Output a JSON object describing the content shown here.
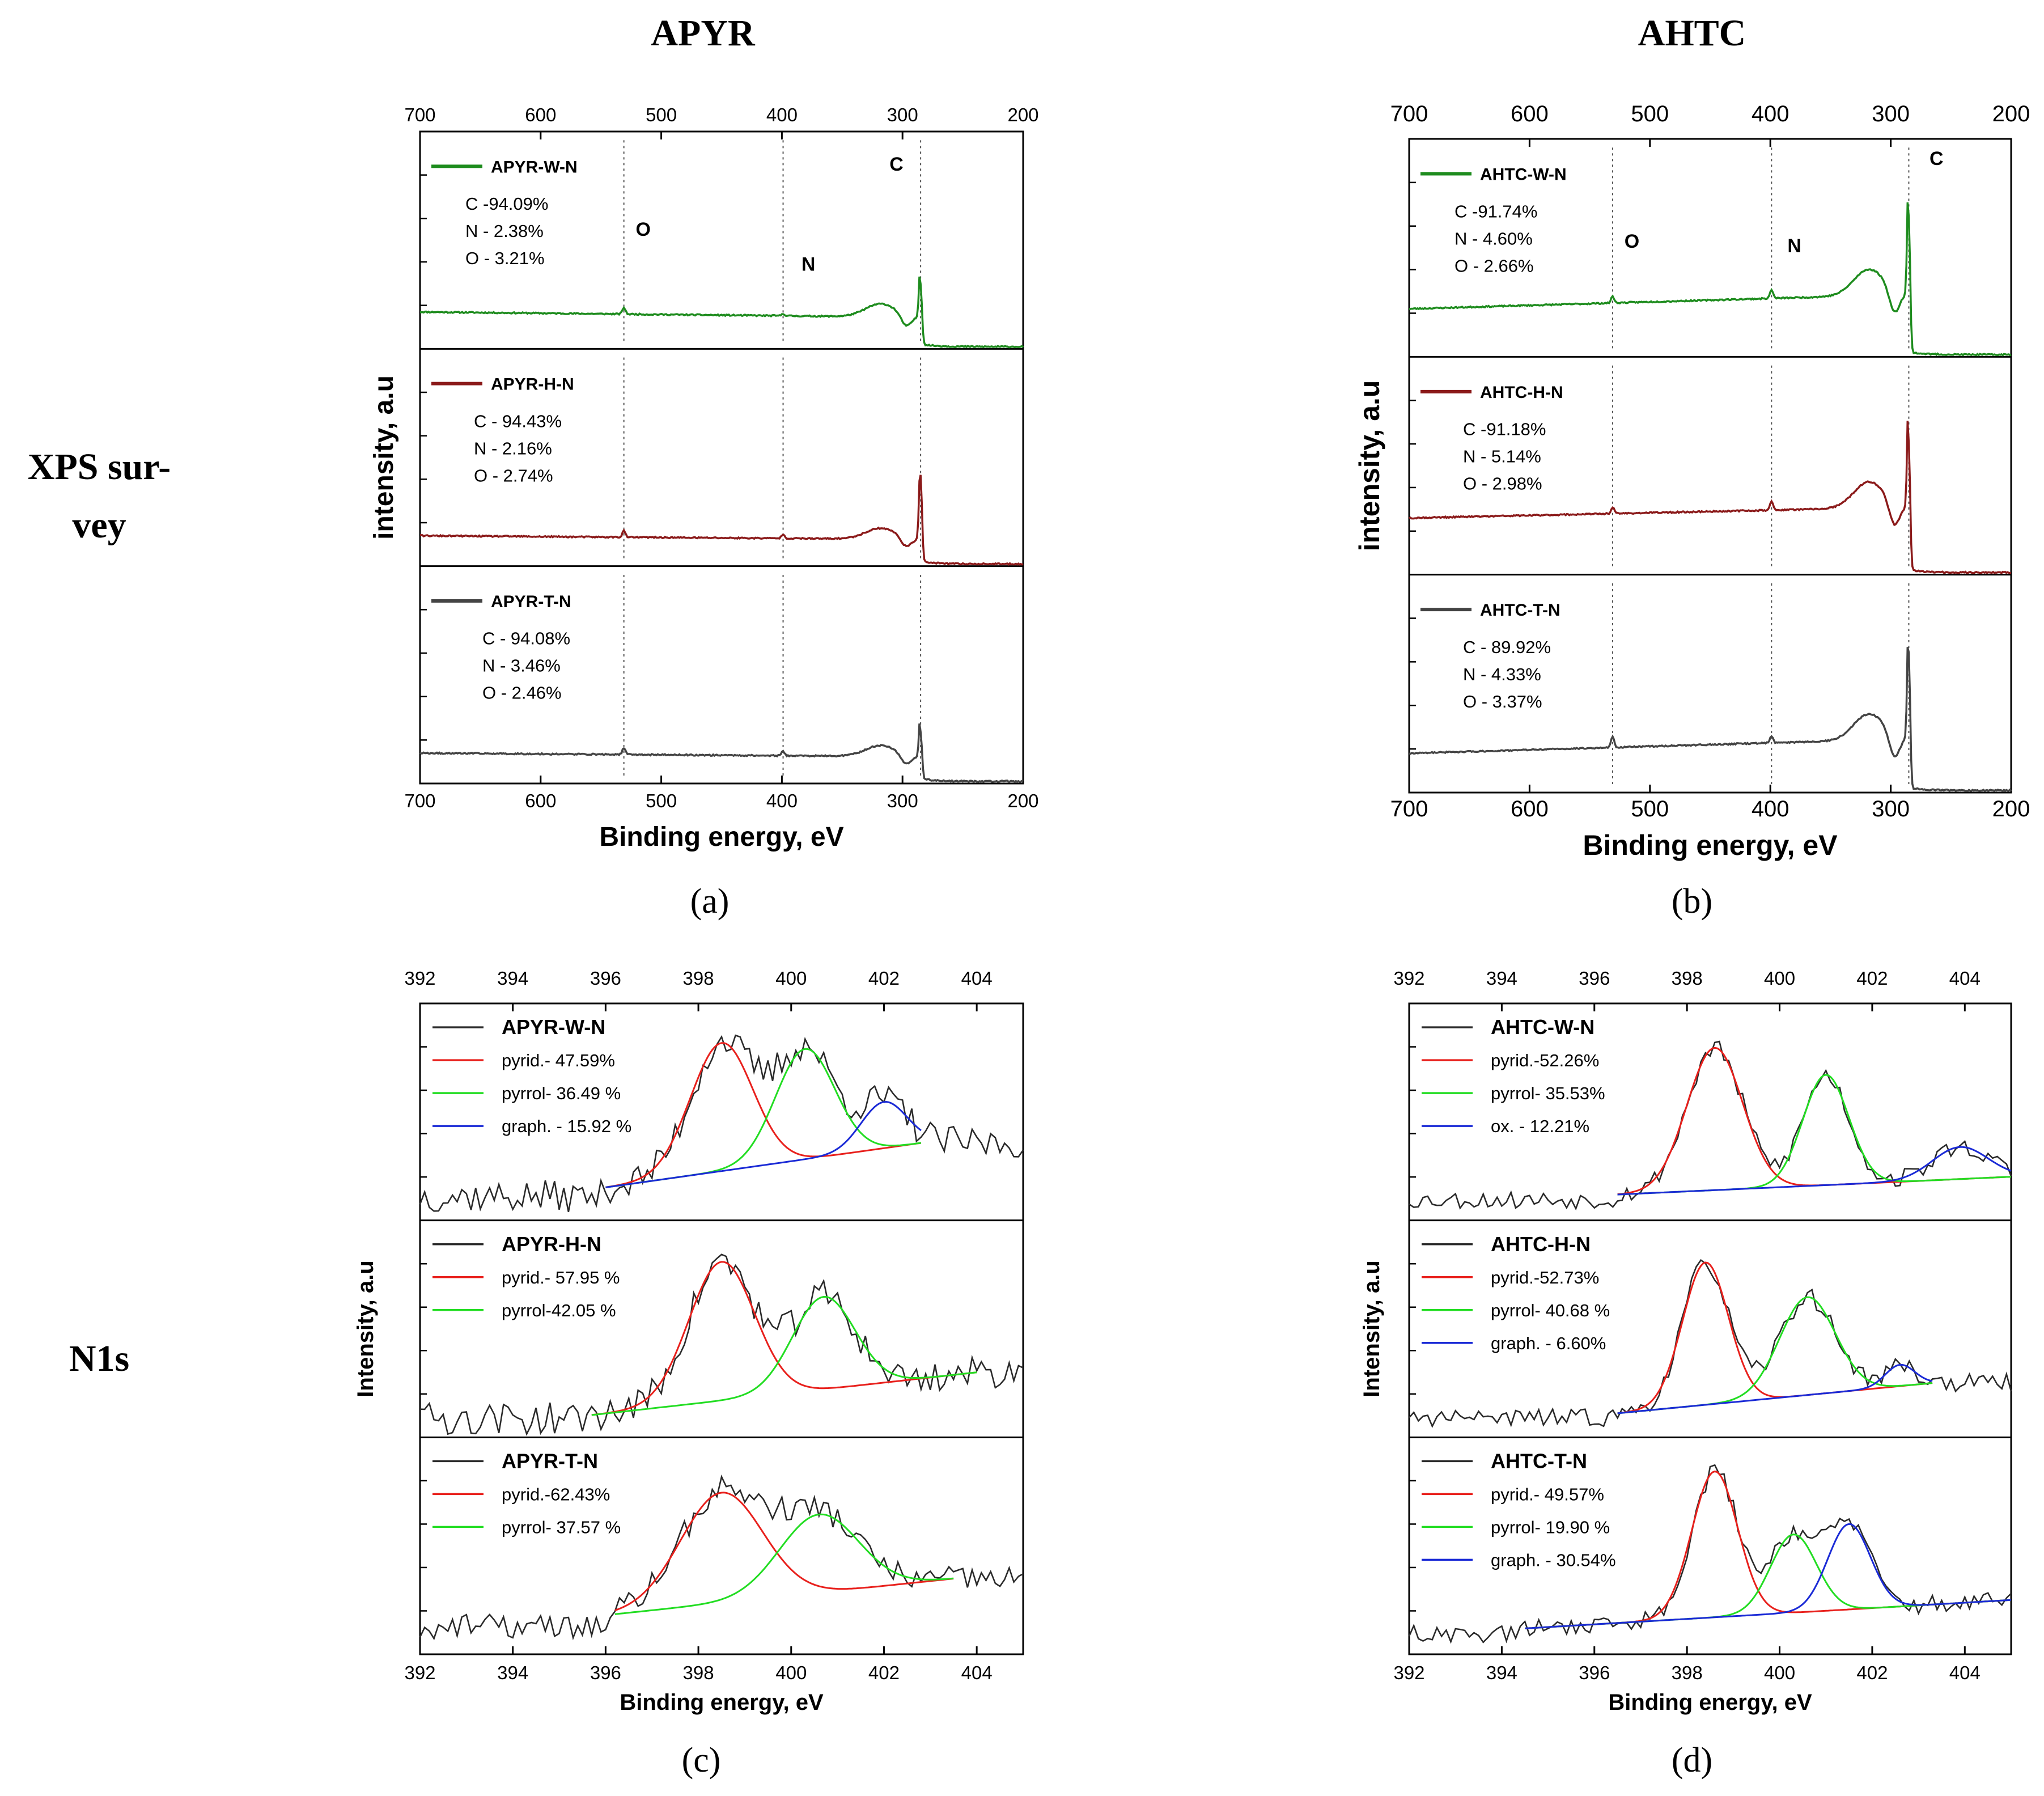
{
  "figure": {
    "column_titles": [
      "APYR",
      "AHTC"
    ],
    "row_titles": [
      [
        "XPS sur-",
        "vey"
      ],
      [
        "N1s"
      ]
    ],
    "panel_labels": [
      "(a)",
      "(b)",
      "(c)",
      "(d)"
    ],
    "axis_labels": {
      "survey_y": "intensity, a.u",
      "n1s_y": "Intensity, a.u",
      "x": "Binding energy, eV"
    }
  },
  "colors": {
    "W": "#1e8c1e",
    "H": "#8b1a1a",
    "T": "#444444",
    "raw": "#2a2a2a",
    "pyrid": "#e8201c",
    "pyrrol": "#22dd22",
    "graph": "#1a2ad6"
  },
  "chart_data": [
    {
      "id": "a",
      "type": "line",
      "title": "APYR",
      "xlabel": "Binding energy, eV",
      "ylabel": "intensity, a.u",
      "xlim": [
        700,
        200
      ],
      "xticks": [
        700,
        600,
        500,
        400,
        300,
        200
      ],
      "guide_lines": [
        531,
        399,
        285
      ],
      "subplots": [
        {
          "name": "APYR-W-N",
          "sample": "W",
          "comp": [
            "C -94.09%",
            "N - 2.38%",
            "O - 3.21%"
          ],
          "peak_labels": [
            {
              "text": "O",
              "x": 515,
              "y": 0.52
            },
            {
              "text": "N",
              "x": 378,
              "y": 0.36
            },
            {
              "text": "C",
              "x": 305,
              "y": 0.82
            }
          ],
          "baseline": [
            0.17,
            0.14
          ],
          "dip": 0.06,
          "peaks": [
            {
              "x": 531,
              "h": 0.03
            },
            {
              "x": 399,
              "h": 0.01
            },
            {
              "x": 285,
              "h": 0.28
            }
          ]
        },
        {
          "name": "APYR-H-N",
          "sample": "H",
          "comp": [
            "C - 94.43%",
            "N - 2.16%",
            "O - 2.74%"
          ],
          "peak_labels": [],
          "baseline": [
            0.14,
            0.12
          ],
          "dip": 0.05,
          "peaks": [
            {
              "x": 531,
              "h": 0.03
            },
            {
              "x": 399,
              "h": 0.02
            },
            {
              "x": 285,
              "h": 0.4
            }
          ]
        },
        {
          "name": "APYR-T-N",
          "sample": "T",
          "comp": [
            "C - 94.08%",
            "N - 3.46%",
            "O - 2.46%"
          ],
          "peak_labels": [],
          "baseline": [
            0.14,
            0.12
          ],
          "dip": 0.05,
          "peaks": [
            {
              "x": 531,
              "h": 0.03
            },
            {
              "x": 399,
              "h": 0.02
            },
            {
              "x": 285,
              "h": 0.22
            }
          ]
        }
      ]
    },
    {
      "id": "b",
      "type": "line",
      "title": "AHTC",
      "xlabel": "Binding energy, eV",
      "ylabel": "intensity, a.u",
      "xlim": [
        700,
        200
      ],
      "xticks": [
        700,
        600,
        500,
        400,
        300,
        200
      ],
      "guide_lines": [
        531,
        399,
        285
      ],
      "subplots": [
        {
          "name": "AHTC-W-N",
          "sample": "W",
          "comp": [
            "C -91.74%",
            "N - 4.60%",
            "O - 2.66%"
          ],
          "peak_labels": [
            {
              "text": "O",
              "x": 515,
              "y": 0.5
            },
            {
              "text": "N",
              "x": 380,
              "y": 0.48
            },
            {
              "text": "C",
              "x": 262,
              "y": 0.88
            }
          ],
          "baseline": [
            0.22,
            0.3
          ],
          "dip": 0.12,
          "peaks": [
            {
              "x": 531,
              "h": 0.03
            },
            {
              "x": 399,
              "h": 0.04
            },
            {
              "x": 285,
              "h": 0.62
            }
          ]
        },
        {
          "name": "AHTC-H-N",
          "sample": "H",
          "comp": [
            "C -91.18%",
            "N - 5.14%",
            "O - 2.98%"
          ],
          "peak_labels": [],
          "baseline": [
            0.26,
            0.32
          ],
          "dip": 0.12,
          "peaks": [
            {
              "x": 531,
              "h": 0.03
            },
            {
              "x": 399,
              "h": 0.04
            },
            {
              "x": 285,
              "h": 0.58
            }
          ]
        },
        {
          "name": "AHTC-T-N",
          "sample": "T",
          "comp": [
            "C - 89.92%",
            "N - 4.33%",
            "O - 3.37%"
          ],
          "peak_labels": [],
          "baseline": [
            0.18,
            0.26
          ],
          "dip": 0.12,
          "peaks": [
            {
              "x": 531,
              "h": 0.05
            },
            {
              "x": 399,
              "h": 0.03
            },
            {
              "x": 285,
              "h": 0.62
            }
          ]
        }
      ]
    },
    {
      "id": "c",
      "type": "line",
      "title": "APYR N1s",
      "xlabel": "Binding energy, eV",
      "ylabel": "Intensity, a.u",
      "xlim": [
        392,
        405
      ],
      "xticks": [
        392,
        394,
        396,
        398,
        400,
        402,
        404
      ],
      "subplots": [
        {
          "name": "APYR-W-N",
          "fit_range": [
            396,
            402.8
          ],
          "bg": [
            0.1,
            0.35
          ],
          "noise": 0.09,
          "components": [
            {
              "label": "pyrid.- 47.59%",
              "kind": "pyrid",
              "center": 398.5,
              "width": 0.95,
              "amp": 0.72
            },
            {
              "label": "pyrrol- 36.49 %",
              "kind": "pyrrol",
              "center": 400.3,
              "width": 0.9,
              "amp": 0.62
            },
            {
              "label": "graph. - 15.92 %",
              "kind": "graph",
              "center": 402.0,
              "width": 0.7,
              "amp": 0.26
            }
          ]
        },
        {
          "name": "APYR-H-N",
          "fit_range": [
            395.7,
            404
          ],
          "bg": [
            0.04,
            0.28
          ],
          "noise": 0.09,
          "components": [
            {
              "label": "pyrid.- 57.95 %",
              "kind": "pyrid",
              "center": 398.5,
              "width": 1.0,
              "amp": 0.78
            },
            {
              "label": "pyrrol-42.05 %",
              "kind": "pyrrol",
              "center": 400.7,
              "width": 0.95,
              "amp": 0.52
            }
          ]
        },
        {
          "name": "APYR-T-N",
          "fit_range": [
            396.2,
            403.5
          ],
          "bg": [
            0.14,
            0.34
          ],
          "noise": 0.07,
          "components": [
            {
              "label": "pyrid.-62.43%",
              "kind": "pyrid",
              "center": 398.5,
              "width": 1.25,
              "amp": 0.62
            },
            {
              "label": "pyrrol- 37.57 %",
              "kind": "pyrrol",
              "center": 400.6,
              "width": 1.2,
              "amp": 0.44
            }
          ]
        }
      ]
    },
    {
      "id": "d",
      "type": "line",
      "title": "AHTC N1s",
      "xlabel": "Binding energy, eV",
      "ylabel": "Intensity, a.u",
      "xlim": [
        392,
        405
      ],
      "xticks": [
        392,
        394,
        396,
        398,
        400,
        402,
        404
      ],
      "subplots": [
        {
          "name": "AHTC-W-N",
          "fit_range": [
            396.5,
            405
          ],
          "bg": [
            0.06,
            0.16
          ],
          "noise": 0.05,
          "components": [
            {
              "label": "pyrid.-52.26%",
              "kind": "pyrid",
              "center": 398.6,
              "width": 0.85,
              "amp": 0.8
            },
            {
              "label": "pyrrol- 35.53%",
              "kind": "pyrrol",
              "center": 401.0,
              "width": 0.7,
              "amp": 0.62
            },
            {
              "label": "ox. - 12.21%",
              "kind": "graph",
              "center": 403.9,
              "width": 0.85,
              "amp": 0.18
            }
          ]
        },
        {
          "name": "AHTC-H-N",
          "fit_range": [
            396.5,
            403.3
          ],
          "bg": [
            0.05,
            0.22
          ],
          "noise": 0.05,
          "components": [
            {
              "label": "pyrid.-52.73%",
              "kind": "pyrid",
              "center": 398.4,
              "width": 0.7,
              "amp": 0.8
            },
            {
              "label": "pyrrol- 40.68 %",
              "kind": "pyrrol",
              "center": 400.6,
              "width": 0.85,
              "amp": 0.55
            },
            {
              "label": "graph. - 6.60%",
              "kind": "graph",
              "center": 402.6,
              "width": 0.45,
              "amp": 0.12
            }
          ]
        },
        {
          "name": "AHTC-T-N",
          "fit_range": [
            394.5,
            405
          ],
          "bg": [
            0.06,
            0.22
          ],
          "noise": 0.05,
          "components": [
            {
              "label": "pyrid.- 49.57%",
              "kind": "pyrid",
              "center": 398.6,
              "width": 0.7,
              "amp": 0.82
            },
            {
              "label": "pyrrol- 19.90 %",
              "kind": "pyrrol",
              "center": 400.3,
              "width": 0.7,
              "amp": 0.44
            },
            {
              "label": "graph. - 30.54%",
              "kind": "graph",
              "center": 401.5,
              "width": 0.65,
              "amp": 0.48
            }
          ]
        }
      ]
    }
  ]
}
